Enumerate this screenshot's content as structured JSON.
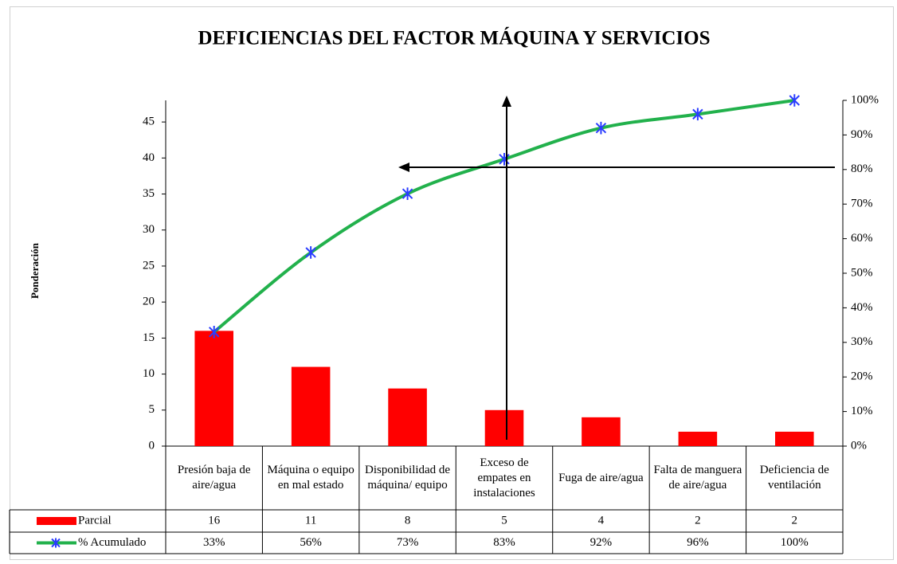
{
  "chart_data": {
    "type": "pareto",
    "title": "DEFICIENCIAS DEL FACTOR MÁQUINA Y SERVICIOS",
    "y_label": "Ponderación",
    "categories": [
      "Presión baja de aire/agua",
      "Máquina o equipo en mal estado",
      "Disponibilidad de máquina/ equipo",
      "Exceso de empates en instalaciones",
      "Fuga de aire/agua",
      "Falta de manguera de aire/agua",
      "Deficiencia de ventilación"
    ],
    "series": [
      {
        "name": "Parcial",
        "color": "#ff0000",
        "values": [
          16,
          11,
          8,
          5,
          4,
          2,
          2
        ]
      },
      {
        "name": "% Acumulado",
        "color": "#22b14c",
        "marker_color": "#2a3cff",
        "axis": "y2",
        "values": [
          33,
          56,
          73,
          83,
          92,
          96,
          100
        ],
        "value_labels": [
          "33%",
          "56%",
          "73%",
          "83%",
          "92%",
          "96%",
          "100%"
        ]
      }
    ],
    "ylim": [
      0,
      48
    ],
    "yticks": [
      0,
      5,
      10,
      15,
      20,
      25,
      30,
      35,
      40,
      45
    ],
    "y2lim": [
      0,
      100
    ],
    "y2ticks": [
      {
        "value": 0,
        "label": "0%"
      },
      {
        "value": 10,
        "label": "10%"
      },
      {
        "value": 20,
        "label": "20%"
      },
      {
        "value": 30,
        "label": "30%"
      },
      {
        "value": 40,
        "label": "40%"
      },
      {
        "value": 50,
        "label": "50%"
      },
      {
        "value": 60,
        "label": "60%"
      },
      {
        "value": 70,
        "label": "70%"
      },
      {
        "value": 80,
        "label": "80%"
      },
      {
        "value": 90,
        "label": "90%"
      },
      {
        "value": 100,
        "label": "100%"
      }
    ]
  }
}
